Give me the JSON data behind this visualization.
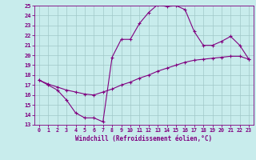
{
  "xlabel": "Windchill (Refroidissement éolien,°C)",
  "ylabel": "",
  "bg_color": "#c8ecec",
  "grid_color": "#a0c8c8",
  "line_color": "#800080",
  "ylim": [
    13,
    25
  ],
  "xlim": [
    -0.5,
    23.5
  ],
  "yticks": [
    13,
    14,
    15,
    16,
    17,
    18,
    19,
    20,
    21,
    22,
    23,
    24,
    25
  ],
  "xticks": [
    0,
    1,
    2,
    3,
    4,
    5,
    6,
    7,
    8,
    9,
    10,
    11,
    12,
    13,
    14,
    15,
    16,
    17,
    18,
    19,
    20,
    21,
    22,
    23
  ],
  "line1_x": [
    0,
    1,
    2,
    3,
    4,
    5,
    6,
    7,
    8,
    9,
    10,
    11,
    12,
    13,
    14,
    15,
    16,
    17,
    18,
    19,
    20,
    21,
    22,
    23
  ],
  "line1_y": [
    17.5,
    17.0,
    16.5,
    15.5,
    14.2,
    13.7,
    13.7,
    13.3,
    19.8,
    21.6,
    21.6,
    23.2,
    24.3,
    25.1,
    24.9,
    25.0,
    24.6,
    22.4,
    21.0,
    21.0,
    21.4,
    21.9,
    21.0,
    19.6
  ],
  "line2_x": [
    0,
    1,
    2,
    3,
    4,
    5,
    6,
    7,
    8,
    9,
    10,
    11,
    12,
    13,
    14,
    15,
    16,
    17,
    18,
    19,
    20,
    21,
    22,
    23
  ],
  "line2_y": [
    17.5,
    17.1,
    16.8,
    16.5,
    16.3,
    16.1,
    16.0,
    16.3,
    16.6,
    17.0,
    17.3,
    17.7,
    18.0,
    18.4,
    18.7,
    19.0,
    19.3,
    19.5,
    19.6,
    19.7,
    19.8,
    19.9,
    19.9,
    19.6
  ]
}
